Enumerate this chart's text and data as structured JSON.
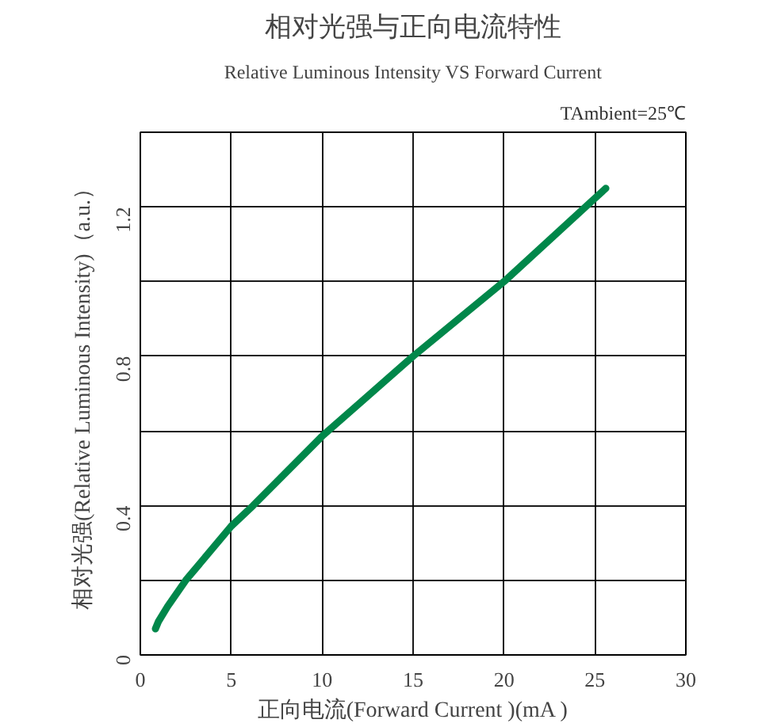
{
  "chart_data": {
    "type": "line",
    "title": "相对光强与正向电流特性",
    "subtitle": "Relative Luminous Intensity VS Forward Current",
    "xlabel": "正向电流(Forward Current )(mA )",
    "ylabel": "相对光强(Relative Luminous Intensity)（a.u.）",
    "annotations": [
      "TAmbient=25℃"
    ],
    "x": [
      0.83,
      1.0,
      1.5,
      2.5,
      5,
      6.2,
      10,
      15,
      20,
      25.6
    ],
    "series": [
      {
        "color": "#00874a",
        "values": [
          0.07,
          0.09,
          0.13,
          0.2,
          0.345,
          0.4,
          0.586,
          0.8,
          1.0,
          1.25
        ]
      }
    ],
    "xlim": [
      0,
      30
    ],
    "xticks": [
      0,
      5,
      10,
      15,
      20,
      25,
      30
    ],
    "ylim": [
      0,
      1.4
    ],
    "yticks": [
      0,
      {
        "value": 0.2,
        "label": null
      },
      0.4,
      {
        "value": 0.6,
        "label": null
      },
      0.8,
      {
        "value": 1.0,
        "label": null
      },
      1.2,
      {
        "value": 1.4,
        "label": null
      }
    ],
    "grid": true
  }
}
